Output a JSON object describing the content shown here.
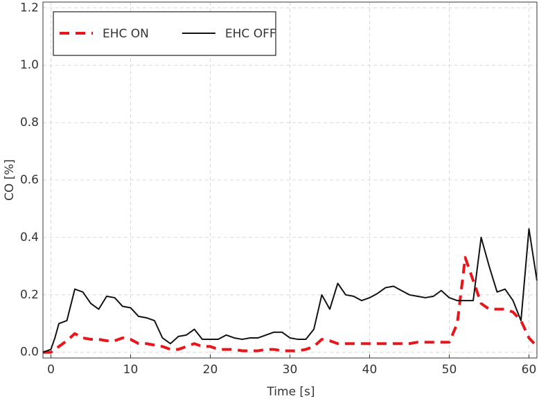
{
  "chart_data": {
    "type": "line",
    "xlabel": "Time [s]",
    "ylabel": "CO [%]",
    "x": [
      -1,
      0,
      0.5,
      1,
      2,
      3,
      4,
      5,
      6,
      7,
      8,
      9,
      10,
      11,
      12,
      13,
      14,
      15,
      16,
      17,
      18,
      19,
      20,
      21,
      22,
      23,
      24,
      25,
      26,
      27,
      28,
      29,
      30,
      31,
      32,
      33,
      34,
      35,
      36,
      37,
      38,
      39,
      40,
      41,
      42,
      43,
      44,
      45,
      46,
      47,
      48,
      49,
      50,
      51,
      52,
      53,
      54,
      55,
      56,
      57,
      58,
      59,
      60,
      61
    ],
    "series": [
      {
        "name": "EHC ON",
        "color": "#e8161b",
        "line_style": "dashed",
        "values": [
          0,
          0,
          0.01,
          0.02,
          0.04,
          0.065,
          0.05,
          0.045,
          0.045,
          0.04,
          0.04,
          0.05,
          0.045,
          0.03,
          0.03,
          0.025,
          0.02,
          0.01,
          0.01,
          0.02,
          0.03,
          0.02,
          0.02,
          0.01,
          0.01,
          0.01,
          0.005,
          0.005,
          0.005,
          0.01,
          0.01,
          0.005,
          0.005,
          0.005,
          0.01,
          0.02,
          0.045,
          0.04,
          0.03,
          0.03,
          0.03,
          0.03,
          0.03,
          0.03,
          0.03,
          0.03,
          0.03,
          0.03,
          0.035,
          0.035,
          0.035,
          0.035,
          0.035,
          0.1,
          0.33,
          0.25,
          0.17,
          0.15,
          0.15,
          0.15,
          0.14,
          0.11,
          0.05,
          0.02
        ]
      },
      {
        "name": "EHC OFF",
        "color": "#111111",
        "line_style": "solid",
        "values": [
          0,
          0.01,
          0.05,
          0.1,
          0.11,
          0.22,
          0.21,
          0.17,
          0.15,
          0.195,
          0.19,
          0.16,
          0.155,
          0.125,
          0.12,
          0.11,
          0.05,
          0.03,
          0.055,
          0.06,
          0.08,
          0.045,
          0.045,
          0.045,
          0.06,
          0.05,
          0.045,
          0.05,
          0.05,
          0.06,
          0.07,
          0.07,
          0.05,
          0.045,
          0.045,
          0.08,
          0.2,
          0.15,
          0.24,
          0.2,
          0.195,
          0.18,
          0.19,
          0.205,
          0.225,
          0.23,
          0.215,
          0.2,
          0.195,
          0.19,
          0.195,
          0.215,
          0.19,
          0.18,
          0.18,
          0.18,
          0.4,
          0.3,
          0.21,
          0.22,
          0.18,
          0.11,
          0.43,
          0.25
        ]
      }
    ],
    "xlim": [
      -1,
      61
    ],
    "xticks": [
      0,
      10,
      20,
      30,
      40,
      50,
      60
    ],
    "ylim": [
      -0.02,
      1.22
    ],
    "yticks": [
      {
        "value": 0,
        "label": "0.0"
      },
      0.2,
      0.4,
      0.6,
      0.8,
      {
        "value": 1,
        "label": "1.0"
      },
      1.2
    ],
    "grid": true,
    "legend": "upper left"
  }
}
